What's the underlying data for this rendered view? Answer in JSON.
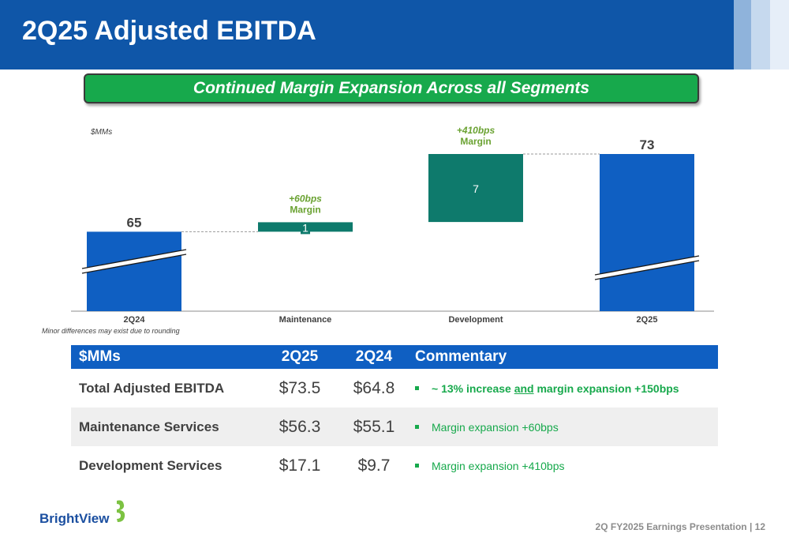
{
  "header": {
    "title": "2Q25 Adjusted EBITDA"
  },
  "banner": {
    "text": "Continued Margin Expansion Across all Segments"
  },
  "chart_data": {
    "type": "bar",
    "subtype": "waterfall",
    "unit_label": "$MMs",
    "categories": [
      "2Q24",
      "Maintenance",
      "Development",
      "2Q25"
    ],
    "values": [
      65,
      1,
      7,
      73
    ],
    "value_labels": [
      "65",
      "1",
      "7",
      "73"
    ],
    "kinds": [
      "total",
      "delta",
      "delta",
      "total"
    ],
    "annotations": [
      {
        "category": "Maintenance",
        "line1": "+60bps",
        "line2": "Margin"
      },
      {
        "category": "Development",
        "line1": "+410bps",
        "line2": "Margin"
      }
    ],
    "axis_break": true,
    "grid": false,
    "colors": {
      "total": "#0f5fc2",
      "delta": "#0e7a6c",
      "annotation": "#6aa232"
    }
  },
  "footnote": "Minor differences may exist  due to rounding",
  "table": {
    "headers": [
      "$MMs",
      "2Q25",
      "2Q24",
      "Commentary"
    ],
    "rows": [
      {
        "label": "Total Adjusted EBITDA",
        "q25": "$73.5",
        "q24": "$64.8",
        "c_pre": "~ 13% increase ",
        "c_ul": "and",
        "c_post": " margin expansion +150bps"
      },
      {
        "label": "Maintenance Services",
        "q25": "$56.3",
        "q24": "$55.1",
        "c_pre": "Margin expansion +60bps"
      },
      {
        "label": "Development Services",
        "q25": "$17.1",
        "q24": "$9.7",
        "c_pre": "Margin expansion +410bps"
      }
    ]
  },
  "logo": {
    "text": "BrightView"
  },
  "footer": {
    "text": "2Q FY2025 Earnings Presentation | 12"
  }
}
